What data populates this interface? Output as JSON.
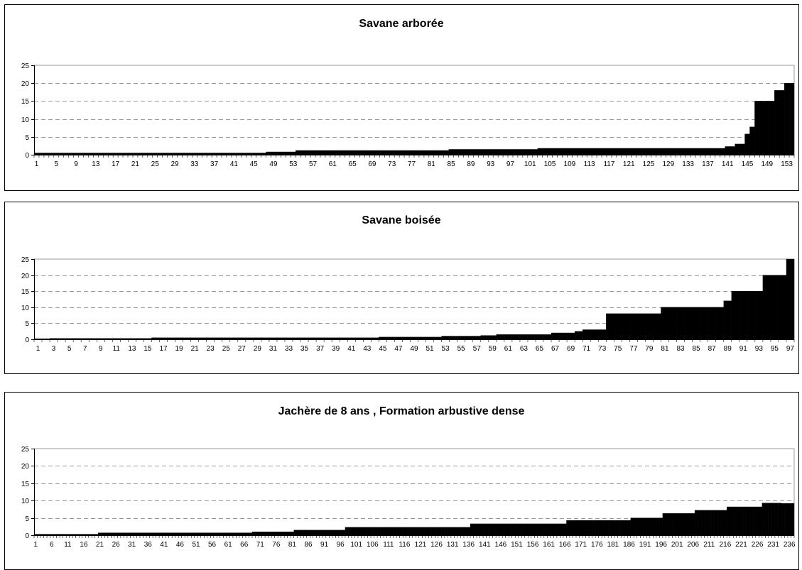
{
  "chart_data": [
    {
      "type": "bar",
      "title": "Savane arborée",
      "ylim": [
        0,
        25
      ],
      "yticks": [
        0,
        5,
        10,
        15,
        20,
        25
      ],
      "n_bars": 154,
      "xtick_labels": [
        "1",
        "5",
        "9",
        "13",
        "17",
        "21",
        "25",
        "29",
        "33",
        "37",
        "41",
        "45",
        "49",
        "53",
        "57",
        "61",
        "65",
        "69",
        "73",
        "77",
        "81",
        "85",
        "89",
        "93",
        "97",
        "101",
        "105",
        "109",
        "113",
        "117",
        "121",
        "125",
        "129",
        "133",
        "137",
        "141",
        "145",
        "149",
        "153"
      ],
      "value_runs": [
        [
          47,
          0.5
        ],
        [
          6,
          0.8
        ],
        [
          31,
          1.2
        ],
        [
          18,
          1.5
        ],
        [
          38,
          1.8
        ],
        [
          2,
          2.3
        ],
        [
          2,
          3.0
        ],
        [
          1,
          5.8
        ],
        [
          1,
          7.8
        ],
        [
          4,
          15
        ],
        [
          2,
          18
        ],
        [
          2,
          20
        ]
      ],
      "grid": "horizontal dashed",
      "legend": "none"
    },
    {
      "type": "bar",
      "title": "Savane boisée",
      "ylim": [
        0,
        25
      ],
      "yticks": [
        0,
        5,
        10,
        15,
        20,
        25
      ],
      "n_bars": 97,
      "xtick_labels": [
        "1",
        "3",
        "5",
        "7",
        "9",
        "11",
        "13",
        "15",
        "17",
        "19",
        "21",
        "23",
        "25",
        "27",
        "29",
        "31",
        "33",
        "35",
        "37",
        "39",
        "41",
        "43",
        "45",
        "47",
        "49",
        "51",
        "53",
        "55",
        "57",
        "59",
        "61",
        "63",
        "65",
        "67",
        "69",
        "71",
        "73",
        "75",
        "77",
        "79",
        "81",
        "83",
        "85",
        "87",
        "89",
        "91",
        "93",
        "95",
        "97"
      ],
      "value_runs": [
        [
          2,
          0.2
        ],
        [
          13,
          0.3
        ],
        [
          29,
          0.5
        ],
        [
          8,
          0.7
        ],
        [
          5,
          1.0
        ],
        [
          2,
          1.2
        ],
        [
          7,
          1.5
        ],
        [
          3,
          2.0
        ],
        [
          1,
          2.5
        ],
        [
          3,
          3.0
        ],
        [
          7,
          8.0
        ],
        [
          8,
          10.0
        ],
        [
          1,
          12.0
        ],
        [
          4,
          15.0
        ],
        [
          3,
          20.0
        ],
        [
          1,
          25.0
        ]
      ],
      "grid": "horizontal dashed",
      "legend": "none"
    },
    {
      "type": "bar",
      "title": "Jachère de 8 ans , Formation arbustive dense",
      "ylim": [
        0,
        25
      ],
      "yticks": [
        0,
        5,
        10,
        15,
        20,
        25
      ],
      "n_bars": 237,
      "xtick_labels": [
        "1",
        "6",
        "11",
        "16",
        "21",
        "26",
        "31",
        "36",
        "41",
        "46",
        "51",
        "56",
        "61",
        "66",
        "71",
        "76",
        "81",
        "86",
        "91",
        "96",
        "101",
        "106",
        "111",
        "116",
        "121",
        "126",
        "131",
        "136",
        "141",
        "146",
        "151",
        "156",
        "161",
        "166",
        "171",
        "176",
        "181",
        "186",
        "191",
        "196",
        "201",
        "206",
        "211",
        "216",
        "221",
        "226",
        "231",
        "236"
      ],
      "value_runs": [
        [
          20,
          0.3
        ],
        [
          48,
          0.7
        ],
        [
          13,
          1.0
        ],
        [
          16,
          1.5
        ],
        [
          39,
          2.3
        ],
        [
          30,
          3.3
        ],
        [
          20,
          4.3
        ],
        [
          10,
          5.0
        ],
        [
          10,
          6.3
        ],
        [
          10,
          7.2
        ],
        [
          11,
          8.2
        ],
        [
          6,
          9.3
        ],
        [
          4,
          9.2
        ]
      ],
      "grid": "horizontal dashed",
      "legend": "none"
    }
  ]
}
